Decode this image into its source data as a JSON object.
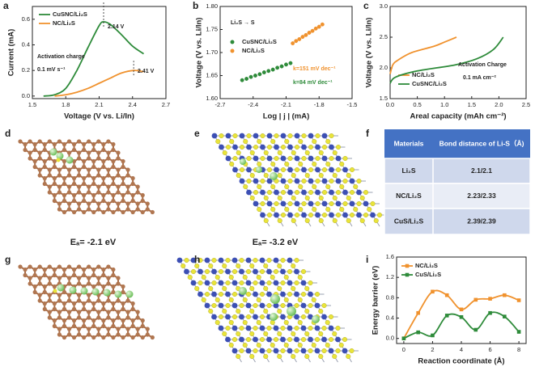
{
  "chart_data": [
    {
      "panel": "a",
      "type": "line",
      "xlabel": "Voltage (V vs. Li/In)",
      "ylabel": "Current (mA)",
      "xlim": [
        1.5,
        2.7
      ],
      "xticks": [
        1.5,
        1.8,
        2.1,
        2.4,
        2.7
      ],
      "ylim": [
        -0.02,
        0.7
      ],
      "yticks": [
        {
          "value": 0,
          "label": "0.0"
        },
        0.2,
        0.4,
        0.6
      ],
      "legend": "upper left",
      "annotations": [
        "Activation charge",
        "0.1 mV s⁻¹",
        "2.14 V",
        "2.41 V"
      ],
      "series": [
        {
          "name": "CuSNC/Li₂S",
          "color": "#2e8b3a",
          "x": [
            1.6,
            1.7,
            1.8,
            1.9,
            2.0,
            2.1,
            2.14,
            2.2,
            2.3,
            2.4,
            2.5
          ],
          "values": [
            0.0,
            0.01,
            0.06,
            0.2,
            0.38,
            0.55,
            0.58,
            0.56,
            0.48,
            0.39,
            0.33
          ]
        },
        {
          "name": "NC/Li₂S",
          "color": "#f0922e",
          "x": [
            1.7,
            1.8,
            1.9,
            2.0,
            2.1,
            2.2,
            2.3,
            2.41,
            2.5
          ],
          "values": [
            0.0,
            0.01,
            0.03,
            0.06,
            0.1,
            0.14,
            0.18,
            0.2,
            0.19
          ]
        }
      ]
    },
    {
      "panel": "b",
      "type": "scatter",
      "xlabel": "Log | j | (mA)",
      "ylabel": "Voltage (V vs. Li/In)",
      "xlim": [
        -2.7,
        -1.5
      ],
      "xticks": [
        -2.7,
        -2.4,
        -2.1,
        -1.8,
        -1.5
      ],
      "ylim": [
        1.6,
        1.8
      ],
      "yticks": [
        {
          "value": 1.6,
          "label": "1.60"
        },
        1.65,
        {
          "value": 1.7,
          "label": "1.70"
        },
        1.75,
        {
          "value": 1.8,
          "label": "1.80"
        }
      ],
      "legend": "center left",
      "annotations": [
        "Li₂S → S",
        "k=151 mV dec⁻¹",
        "k=84 mV dec⁻¹"
      ],
      "series": [
        {
          "name": "CuSNC/Li₂S",
          "color": "#2e8b3a",
          "x": [
            -2.5,
            -2.46,
            -2.42,
            -2.38,
            -2.34,
            -2.3,
            -2.26,
            -2.22,
            -2.18,
            -2.14,
            -2.1,
            -2.06
          ],
          "values": [
            1.64,
            1.643,
            1.647,
            1.65,
            1.653,
            1.657,
            1.66,
            1.663,
            1.667,
            1.67,
            1.674,
            1.677
          ]
        },
        {
          "name": "NC/Li₂S",
          "color": "#f0922e",
          "x": [
            -2.04,
            -2.01,
            -1.98,
            -1.95,
            -1.92,
            -1.89,
            -1.86,
            -1.83,
            -1.8,
            -1.77
          ],
          "values": [
            1.72,
            1.725,
            1.729,
            1.734,
            1.738,
            1.743,
            1.747,
            1.752,
            1.756,
            1.761
          ]
        }
      ]
    },
    {
      "panel": "c",
      "type": "line",
      "xlabel": "Areal capacity (mAh cm⁻²)",
      "ylabel": "Voltage (V vs. Li/In)",
      "xlim": [
        0,
        2.5
      ],
      "xticks": [
        {
          "value": 0,
          "label": "0.0"
        },
        0.5,
        {
          "value": 1,
          "label": "1.0"
        },
        1.5,
        {
          "value": 2,
          "label": "2.0"
        },
        2.5
      ],
      "ylim": [
        1.5,
        3.0
      ],
      "yticks": [
        1.5,
        {
          "value": 2,
          "label": "2.0"
        },
        2.5,
        {
          "value": 3,
          "label": "3.0"
        }
      ],
      "legend": "lower left",
      "annotations": [
        "Activation Charge",
        "0.1 mA cm⁻²"
      ],
      "series": [
        {
          "name": "NC/Li₂S",
          "color": "#f0922e",
          "x": [
            0,
            0.05,
            0.15,
            0.4,
            0.8,
            1.0,
            1.22
          ],
          "values": [
            1.9,
            2.05,
            2.13,
            2.25,
            2.35,
            2.42,
            2.5
          ]
        },
        {
          "name": "CuSNC/Li₂S",
          "color": "#2e8b3a",
          "x": [
            0,
            0.1,
            0.5,
            1.2,
            1.6,
            1.9,
            2.08
          ],
          "values": [
            1.75,
            1.85,
            1.95,
            2.05,
            2.15,
            2.3,
            2.5
          ]
        }
      ]
    },
    {
      "panel": "i",
      "type": "line",
      "smooth": true,
      "markers": true,
      "xlabel": "Reaction coordinate (Å)",
      "ylabel": "Energy barrier (eV)",
      "xlim": [
        -0.5,
        8.5
      ],
      "xticks": [
        0,
        2,
        4,
        6,
        8
      ],
      "ylim": [
        -0.1,
        1.6
      ],
      "yticks": [
        {
          "value": 0,
          "label": "0.0"
        },
        0.4,
        0.8,
        1.2,
        1.6
      ],
      "legend": "upper left",
      "x": [
        0,
        1,
        2,
        3,
        4,
        5,
        6,
        7,
        8
      ],
      "series": [
        {
          "name": "NC/Li₂S",
          "color": "#f0922e",
          "values": [
            0.0,
            0.5,
            0.92,
            0.85,
            0.57,
            0.76,
            0.78,
            0.85,
            0.75
          ]
        },
        {
          "name": "CuS/Li₂S",
          "color": "#2e8b3a",
          "values": [
            0.0,
            0.12,
            0.06,
            0.45,
            0.42,
            0.17,
            0.5,
            0.43,
            0.13
          ]
        }
      ]
    }
  ],
  "table": {
    "panel": "f",
    "header": [
      "Materials",
      "Bond distance of Li-S（Å)"
    ],
    "rows": [
      [
        "Li₂S",
        "2.1/2.1"
      ],
      [
        "NC/Li₂S",
        "2.23/2.33"
      ],
      [
        "CuS/Li₂S",
        "2.39/2.39"
      ]
    ]
  },
  "structures": {
    "d": {
      "panel": "d",
      "energy": "Eₐ= -2.1 eV"
    },
    "e": {
      "panel": "e",
      "energy": "Eₐ= -3.2 eV"
    },
    "g": {
      "panel": "g"
    },
    "h": {
      "panel": "h"
    }
  }
}
